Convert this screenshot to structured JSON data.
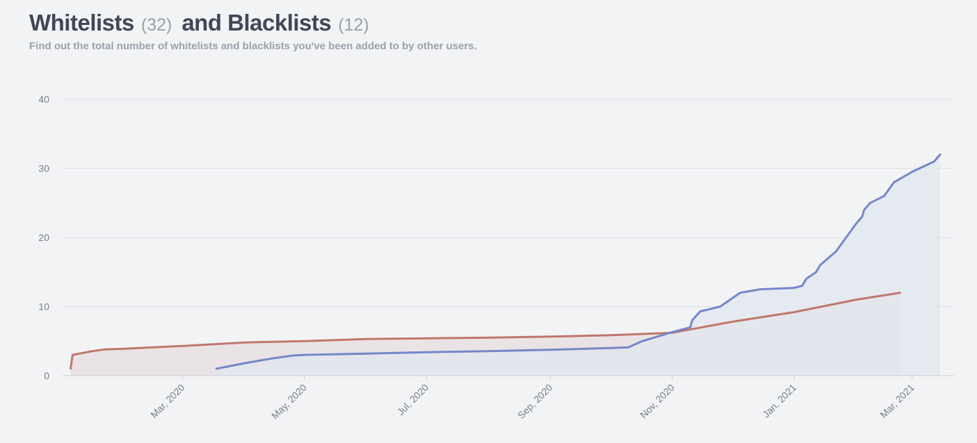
{
  "header": {
    "whitelists_label": "Whitelists",
    "whitelists_count": "(32)",
    "blacklists_label": "and Blacklists",
    "blacklists_count": "(12)",
    "subtitle": "Find out the total number of whitelists and blacklists you've been added to by other users."
  },
  "chart_data": {
    "type": "area",
    "title": "",
    "xlabel": "",
    "ylabel": "",
    "x_axis_type": "date",
    "ylim": [
      0,
      40
    ],
    "xlim": [
      "2020-01-01",
      "2021-03-22"
    ],
    "y_ticks": [
      "0",
      "10",
      "20",
      "30",
      "40"
    ],
    "x_ticks": [
      {
        "date": "2020-03-01",
        "label": "Mar, 2020"
      },
      {
        "date": "2020-05-01",
        "label": "May, 2020"
      },
      {
        "date": "2020-07-01",
        "label": "Jul, 2020"
      },
      {
        "date": "2020-09-01",
        "label": "Sep, 2020"
      },
      {
        "date": "2020-11-01",
        "label": "Nov, 2020"
      },
      {
        "date": "2021-01-01",
        "label": "Jan, 2021"
      },
      {
        "date": "2021-03-01",
        "label": "Mar, 2021"
      }
    ],
    "grid": true,
    "legend": "none",
    "series": [
      {
        "key": "blacklists",
        "color": "#c0766c",
        "fill": "#e9dfe2",
        "points": [
          [
            "2020-01-05",
            1
          ],
          [
            "2020-01-06",
            3
          ],
          [
            "2020-01-15",
            3.5
          ],
          [
            "2020-01-22",
            3.8
          ],
          [
            "2020-02-01",
            3.9
          ],
          [
            "2020-03-01",
            4.3
          ],
          [
            "2020-04-01",
            4.8
          ],
          [
            "2020-05-01",
            5.0
          ],
          [
            "2020-06-01",
            5.3
          ],
          [
            "2020-07-01",
            5.4
          ],
          [
            "2020-08-01",
            5.5
          ],
          [
            "2020-09-01",
            5.65
          ],
          [
            "2020-10-01",
            5.85
          ],
          [
            "2020-11-01",
            6.2
          ],
          [
            "2020-12-01",
            7.8
          ],
          [
            "2021-01-01",
            9.2
          ],
          [
            "2021-02-01",
            11.0
          ],
          [
            "2021-02-23",
            12
          ]
        ]
      },
      {
        "key": "whitelists",
        "color": "#7487c8",
        "fill": "#e3e6ef",
        "points": [
          [
            "2020-03-18",
            1
          ],
          [
            "2020-04-01",
            1.8
          ],
          [
            "2020-04-15",
            2.5
          ],
          [
            "2020-04-25",
            2.9
          ],
          [
            "2020-05-01",
            3.0
          ],
          [
            "2020-06-01",
            3.2
          ],
          [
            "2020-07-01",
            3.4
          ],
          [
            "2020-08-01",
            3.55
          ],
          [
            "2020-09-01",
            3.75
          ],
          [
            "2020-10-01",
            4.0
          ],
          [
            "2020-10-10",
            4.1
          ],
          [
            "2020-10-17",
            5.0
          ],
          [
            "2020-11-01",
            6.3
          ],
          [
            "2020-11-10",
            7.0
          ],
          [
            "2020-11-11",
            8.0
          ],
          [
            "2020-11-15",
            9.3
          ],
          [
            "2020-11-25",
            10.0
          ],
          [
            "2020-12-05",
            12.0
          ],
          [
            "2020-12-15",
            12.5
          ],
          [
            "2021-01-01",
            12.7
          ],
          [
            "2021-01-05",
            13.0
          ],
          [
            "2021-01-07",
            14.0
          ],
          [
            "2021-01-12",
            15.0
          ],
          [
            "2021-01-14",
            16.0
          ],
          [
            "2021-01-22",
            18.0
          ],
          [
            "2021-02-01",
            22.0
          ],
          [
            "2021-02-04",
            23.0
          ],
          [
            "2021-02-05",
            24.0
          ],
          [
            "2021-02-08",
            25.0
          ],
          [
            "2021-02-15",
            26.0
          ],
          [
            "2021-02-20",
            28.0
          ],
          [
            "2021-03-01",
            29.5
          ],
          [
            "2021-03-12",
            31.0
          ],
          [
            "2021-03-15",
            32
          ]
        ]
      }
    ]
  }
}
